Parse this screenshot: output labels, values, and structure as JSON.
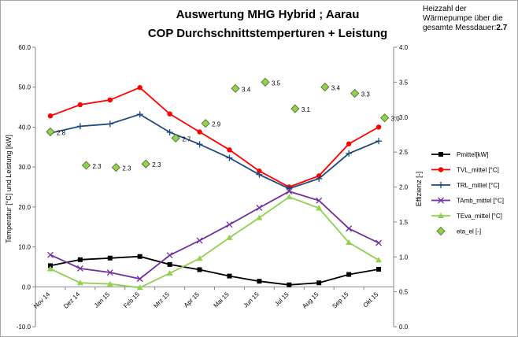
{
  "title_line1": "Auswertung MHG Hybrid ; Aarau",
  "title_line2": "COP  Durchschnittstemperturen  + Leistung",
  "note": {
    "text": "Heizzahl der Wärmepumpe über die gesamte Messdauer:",
    "value": "2.7"
  },
  "chart_data": {
    "type": "line",
    "categories": [
      "Nov 14",
      "Dez 14",
      "Jan 15",
      "Feb 15",
      "Mrz 15",
      "Apr 15",
      "Mai 15",
      "Jun 15",
      "Jul 15",
      "Aug 15",
      "Sep 15",
      "Okt 15"
    ],
    "ylabel": "Temperatur [°C]  und Leistung [kW]",
    "y2label": "Effizienz [-]",
    "ylim": [
      -10,
      60
    ],
    "y2lim": [
      0,
      4
    ],
    "yticks": [
      "60.0",
      "50.0",
      "40.0",
      "30.0",
      "20.0",
      "10.0",
      "0.0",
      "-10.0"
    ],
    "y2ticks": [
      "4.0",
      "3.5",
      "3.0",
      "2.5",
      "2.0",
      "1.5",
      "1.0",
      "0.5",
      "0.0"
    ],
    "grid": false,
    "legend_position": "right",
    "series": [
      {
        "name": "Pmittel[kW]",
        "axis": "left",
        "color": "#000000",
        "marker": "square",
        "values": [
          5.3,
          6.8,
          7.2,
          7.6,
          5.6,
          4.3,
          2.7,
          1.4,
          0.5,
          1.0,
          3.1,
          4.4
        ]
      },
      {
        "name": "TVL_mittel [°C]",
        "axis": "left",
        "color": "#ff0000",
        "marker": "circle",
        "values": [
          42.8,
          45.6,
          46.8,
          49.9,
          43.3,
          38.8,
          34.3,
          29.0,
          25.0,
          27.8,
          35.8,
          40.0
        ]
      },
      {
        "name": "TRL_mittel [°C]",
        "axis": "left",
        "color": "#1f497d",
        "marker": "plus",
        "values": [
          38.5,
          40.2,
          40.8,
          43.2,
          38.7,
          35.7,
          32.3,
          28.1,
          24.6,
          27.1,
          33.4,
          36.5
        ]
      },
      {
        "name": "TAmb_mittel [°C]",
        "axis": "left",
        "color": "#7030a0",
        "marker": "x",
        "values": [
          8.0,
          4.6,
          3.6,
          2.0,
          7.9,
          11.6,
          15.6,
          19.8,
          23.9,
          21.6,
          14.6,
          11.0
        ]
      },
      {
        "name": "TEva_mittel [°C]",
        "axis": "left",
        "color": "#92d050",
        "marker": "triangle",
        "values": [
          4.5,
          1.0,
          0.7,
          -0.2,
          3.4,
          7.1,
          12.3,
          17.3,
          22.5,
          19.7,
          11.1,
          6.7
        ]
      },
      {
        "name": "eta_el [-]",
        "axis": "right",
        "color": "#92d050",
        "marker": "diamond",
        "line": false,
        "points": [
          {
            "x": 0,
            "value": 2.79,
            "label": "2.8"
          },
          {
            "x": 1.2,
            "value": 2.31,
            "label": "2.3"
          },
          {
            "x": 2.2,
            "value": 2.28,
            "label": "2.3"
          },
          {
            "x": 3.2,
            "value": 2.33,
            "label": "2.3"
          },
          {
            "x": 4.2,
            "value": 2.7,
            "label": "2.7"
          },
          {
            "x": 5.2,
            "value": 2.91,
            "label": "2.9"
          },
          {
            "x": 6.2,
            "value": 3.41,
            "label": "3.4"
          },
          {
            "x": 7.2,
            "value": 3.5,
            "label": "3.5"
          },
          {
            "x": 8.2,
            "value": 3.12,
            "label": "3.1"
          },
          {
            "x": 9.2,
            "value": 3.43,
            "label": "3.4"
          },
          {
            "x": 10.2,
            "value": 3.34,
            "label": "3.3"
          },
          {
            "x": 11.2,
            "value": 2.99,
            "label": "3.0"
          }
        ]
      }
    ]
  }
}
